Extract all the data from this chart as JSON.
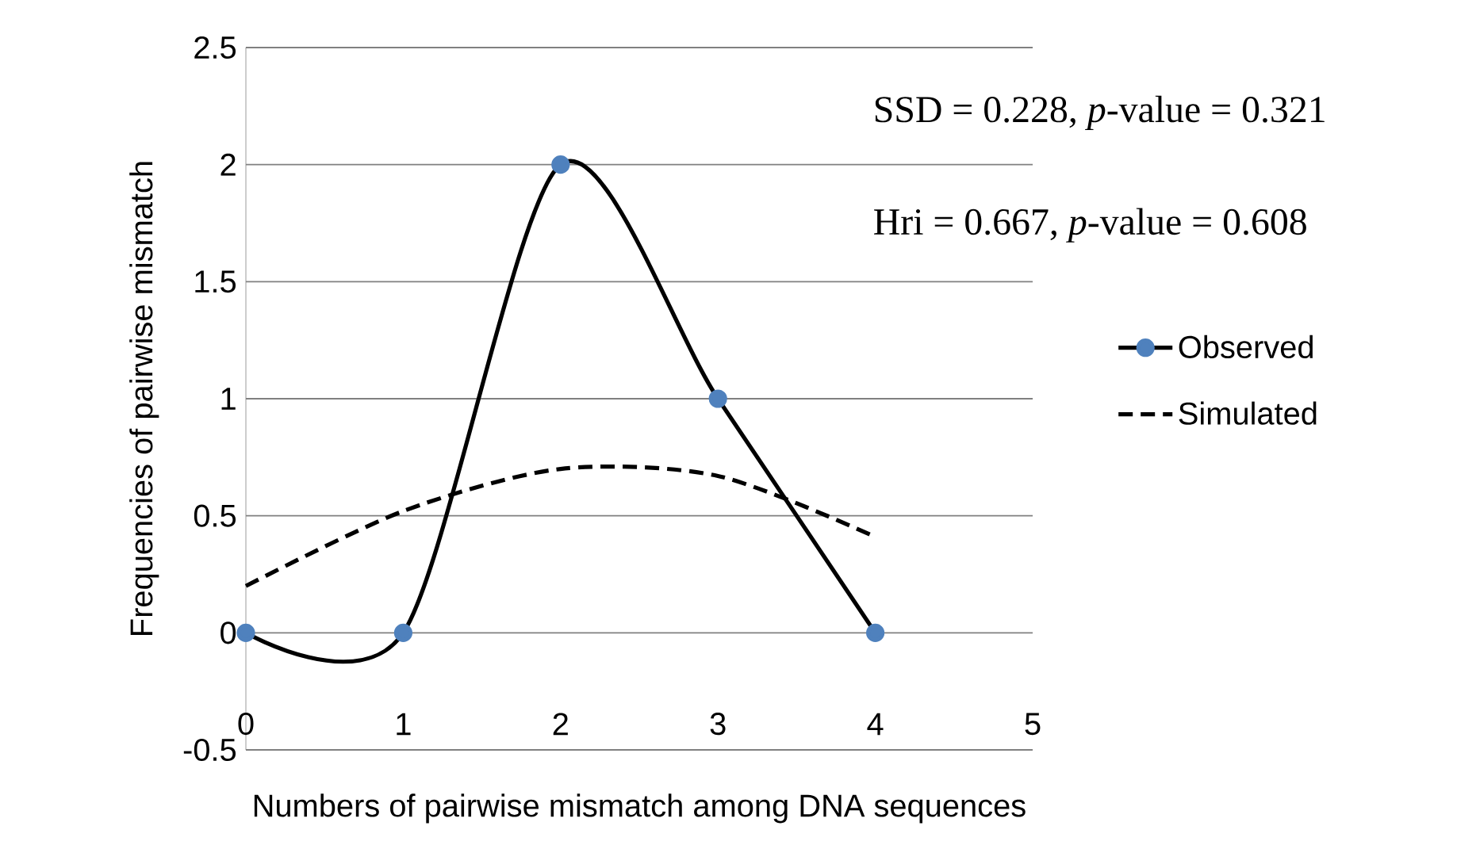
{
  "chart_data": {
    "type": "line",
    "xlabel": "Numbers of pairwise mismatch among DNA sequences",
    "ylabel": "Frequencies of pairwise mismatch",
    "x": [
      0,
      1,
      2,
      3,
      4
    ],
    "series": [
      {
        "name": "Observed",
        "color": "#000000",
        "colors": [
          "#4f81bd",
          "#4f81bd",
          "#4f81bd",
          "#4f81bd",
          "#4f81bd"
        ],
        "marker": "circle",
        "line_style": "solid",
        "values": [
          0,
          0,
          2,
          1,
          0
        ]
      },
      {
        "name": "Simulated",
        "color": "#000000",
        "marker": "none",
        "line_style": "dashed",
        "values": [
          0.2,
          0.52,
          0.7,
          0.67,
          0.41
        ]
      }
    ],
    "xlim": [
      0,
      5
    ],
    "xticks": [
      0,
      1,
      2,
      3,
      4,
      5
    ],
    "ylim": [
      -0.5,
      2.5
    ],
    "yticks": [
      -0.5,
      0,
      0.5,
      1,
      1.5,
      2,
      2.5
    ],
    "grid": "y",
    "legend": "right",
    "annotations": [
      "SSD = 0.228, *p*-value = 0.321",
      "Hri = 0.667, *p*-value = 0.608"
    ]
  }
}
